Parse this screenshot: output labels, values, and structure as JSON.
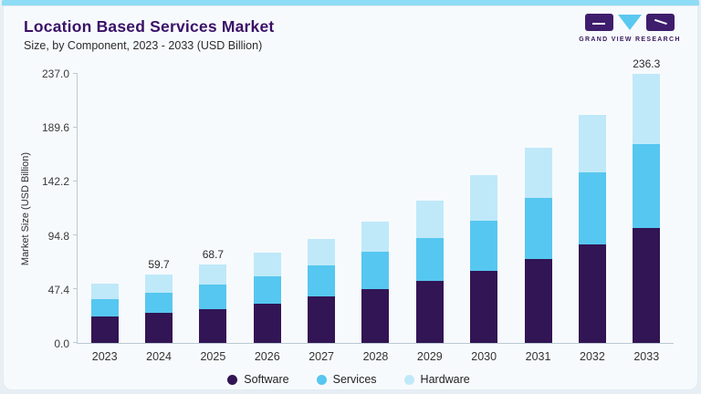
{
  "header": {
    "title": "Location Based Services Market",
    "subtitle": "Size, by Component, 2023 - 2033 (USD Billion)"
  },
  "logo": {
    "name": "grand-view-research-logo",
    "text": "GRAND VIEW RESEARCH"
  },
  "colors": {
    "accent_purple": "#3a1168",
    "software": "#321554",
    "services": "#56c7f0",
    "hardware": "#bfe9f9",
    "top_strip": "#8edcf5"
  },
  "chart_data": {
    "type": "bar",
    "stacked": true,
    "title": "Location Based Services Market",
    "subtitle": "Size, by Component, 2023 - 2033 (USD Billion)",
    "xlabel": "",
    "ylabel": "Market Size (USD Billion)",
    "ylim": [
      0,
      237
    ],
    "yticks": [
      0.0,
      47.4,
      94.8,
      142.2,
      189.6,
      237.0
    ],
    "grid": false,
    "legend_position": "bottom",
    "categories": [
      "2023",
      "2024",
      "2025",
      "2026",
      "2027",
      "2028",
      "2029",
      "2030",
      "2031",
      "2032",
      "2033"
    ],
    "series": [
      {
        "name": "Software",
        "color": "#321554",
        "values": [
          23.0,
          26.4,
          29.8,
          34.1,
          40.5,
          47.2,
          54.3,
          63.2,
          73.8,
          86.3,
          101.2
        ]
      },
      {
        "name": "Services",
        "color": "#56c7f0",
        "values": [
          15.4,
          18.0,
          21.1,
          24.7,
          27.5,
          32.7,
          38.0,
          44.1,
          53.2,
          63.5,
          73.5
        ]
      },
      {
        "name": "Hardware",
        "color": "#bfe9f9",
        "values": [
          13.5,
          15.3,
          17.8,
          20.2,
          23.0,
          26.6,
          32.7,
          39.9,
          44.4,
          50.7,
          61.6
        ]
      }
    ],
    "bar_labels": {
      "2024": "59.7",
      "2025": "68.7",
      "2033": "236.3"
    }
  }
}
